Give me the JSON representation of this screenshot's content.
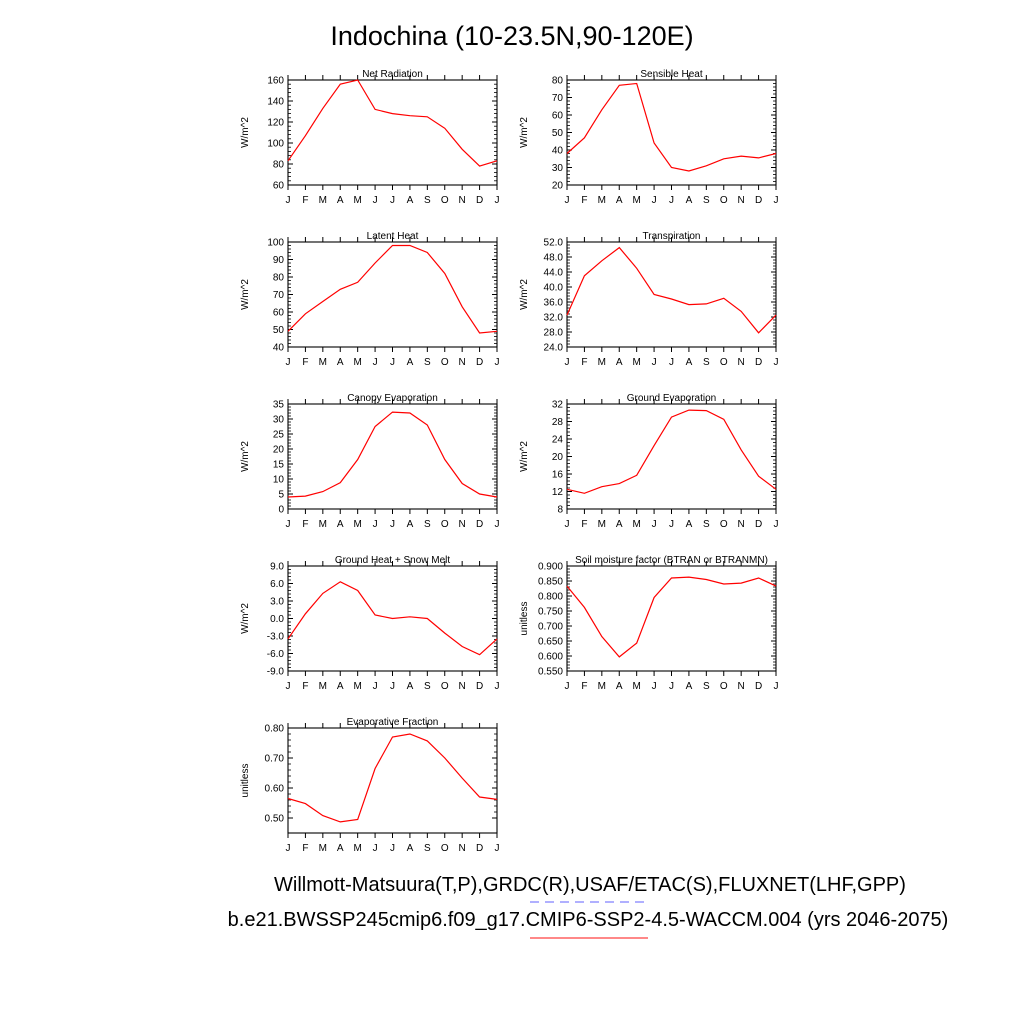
{
  "figure": {
    "title": "Indochina (10-23.5N,90-120E)",
    "footer_line1": "Willmott-Matsuura(T,P),GRDC(R),USAF/ETAC(S),FLUXNET(LHF,GPP)",
    "footer_line2": "b.e21.BWSSP245cmip6.f09_g17.CMIP6-SSP2-4.5-WACCM.004 (yrs 2046-2075)",
    "line_color": "#ff0000",
    "legend_dash_color": "#8080ff",
    "legend_solid_color": "#ff6060"
  },
  "chart_data": [
    {
      "type": "line",
      "title": "Net Radiation",
      "xlabel": "",
      "ylabel": "W/m^2",
      "categories": [
        "J",
        "F",
        "M",
        "A",
        "M",
        "J",
        "J",
        "A",
        "S",
        "O",
        "N",
        "D",
        "J"
      ],
      "ylim": [
        60,
        160
      ],
      "yticks": [
        "60",
        "80",
        "100",
        "120",
        "140",
        "160"
      ],
      "values": [
        83,
        107,
        133,
        156,
        160,
        132,
        128,
        126,
        125,
        114,
        94,
        78,
        83
      ]
    },
    {
      "type": "line",
      "title": "Sensible Heat",
      "xlabel": "",
      "ylabel": "W/m^2",
      "categories": [
        "J",
        "F",
        "M",
        "A",
        "M",
        "J",
        "J",
        "A",
        "S",
        "O",
        "N",
        "D",
        "J"
      ],
      "ylim": [
        20,
        80
      ],
      "yticks": [
        "20",
        "30",
        "40",
        "50",
        "60",
        "70",
        "80"
      ],
      "values": [
        38,
        47,
        63,
        77,
        78,
        44,
        30,
        28,
        31,
        35,
        36.5,
        35.5,
        38
      ]
    },
    {
      "type": "line",
      "title": "Latent Heat",
      "xlabel": "",
      "ylabel": "W/m^2",
      "categories": [
        "J",
        "F",
        "M",
        "A",
        "M",
        "J",
        "J",
        "A",
        "S",
        "O",
        "N",
        "D",
        "J"
      ],
      "ylim": [
        40,
        100
      ],
      "yticks": [
        "40",
        "50",
        "60",
        "70",
        "80",
        "90",
        "100"
      ],
      "values": [
        49,
        59,
        66,
        73,
        77,
        88,
        98,
        98,
        94,
        82,
        63,
        48,
        49
      ]
    },
    {
      "type": "line",
      "title": "Transpiration",
      "xlabel": "",
      "ylabel": "W/m^2",
      "categories": [
        "J",
        "F",
        "M",
        "A",
        "M",
        "J",
        "J",
        "A",
        "S",
        "O",
        "N",
        "D",
        "J"
      ],
      "ylim": [
        24,
        52
      ],
      "yticks": [
        "24.0",
        "28.0",
        "32.0",
        "36.0",
        "40.0",
        "44.0",
        "48.0",
        "52.0"
      ],
      "values": [
        32.5,
        43,
        47,
        50.5,
        45,
        38,
        36.8,
        35.3,
        35.5,
        37,
        33.5,
        27.8,
        32.5
      ]
    },
    {
      "type": "line",
      "title": "Canopy Evaporation",
      "xlabel": "",
      "ylabel": "W/m^2",
      "categories": [
        "J",
        "F",
        "M",
        "A",
        "M",
        "J",
        "J",
        "A",
        "S",
        "O",
        "N",
        "D",
        "J"
      ],
      "ylim": [
        0,
        35
      ],
      "yticks": [
        "0",
        "5",
        "10",
        "15",
        "20",
        "25",
        "30",
        "35"
      ],
      "values": [
        4,
        4.3,
        5.8,
        8.8,
        16.5,
        27.5,
        32.3,
        32,
        28,
        16.5,
        8.5,
        5,
        4
      ]
    },
    {
      "type": "line",
      "title": "Ground Evaporation",
      "xlabel": "",
      "ylabel": "W/m^2",
      "categories": [
        "J",
        "F",
        "M",
        "A",
        "M",
        "J",
        "J",
        "A",
        "S",
        "O",
        "N",
        "D",
        "J"
      ],
      "ylim": [
        8,
        32
      ],
      "yticks": [
        "8",
        "12",
        "16",
        "20",
        "24",
        "28",
        "32"
      ],
      "values": [
        12.5,
        11.6,
        13.1,
        13.8,
        15.7,
        22.5,
        29,
        30.6,
        30.5,
        28.5,
        21.5,
        15.5,
        12.5
      ]
    },
    {
      "type": "line",
      "title": "Ground Heat + Snow Melt",
      "xlabel": "",
      "ylabel": "W/m^2",
      "categories": [
        "J",
        "F",
        "M",
        "A",
        "M",
        "J",
        "J",
        "A",
        "S",
        "O",
        "N",
        "D",
        "J"
      ],
      "ylim": [
        -9,
        9
      ],
      "yticks": [
        "-9.0",
        "-6.0",
        "-3.0",
        "0.0",
        "3.0",
        "6.0",
        "9.0"
      ],
      "values": [
        -3.5,
        0.8,
        4.3,
        6.3,
        4.8,
        0.6,
        0.0,
        0.3,
        0.0,
        -2.5,
        -4.8,
        -6.2,
        -3.5
      ]
    },
    {
      "type": "line",
      "title": "Soil moisture factor (BTRAN or BTRANMN)",
      "xlabel": "",
      "ylabel": "unitless",
      "categories": [
        "J",
        "F",
        "M",
        "A",
        "M",
        "J",
        "J",
        "A",
        "S",
        "O",
        "N",
        "D",
        "J"
      ],
      "ylim": [
        0.55,
        0.9
      ],
      "yticks": [
        "0.550",
        "0.600",
        "0.650",
        "0.700",
        "0.750",
        "0.800",
        "0.850",
        "0.900"
      ],
      "values": [
        0.833,
        0.762,
        0.665,
        0.597,
        0.643,
        0.795,
        0.86,
        0.863,
        0.855,
        0.84,
        0.843,
        0.86,
        0.833
      ]
    },
    {
      "type": "line",
      "title": "Evaporative Fraction",
      "xlabel": "",
      "ylabel": "unitless",
      "categories": [
        "J",
        "F",
        "M",
        "A",
        "M",
        "J",
        "J",
        "A",
        "S",
        "O",
        "N",
        "D",
        "J"
      ],
      "ylim": [
        0.45,
        0.8
      ],
      "yticks": [
        "0.50",
        "0.60",
        "0.70",
        "0.80"
      ],
      "ytick_values": [
        0.5,
        0.6,
        0.7,
        0.8
      ],
      "values": [
        0.565,
        0.548,
        0.508,
        0.487,
        0.495,
        0.665,
        0.77,
        0.78,
        0.757,
        0.7,
        0.633,
        0.57,
        0.562
      ]
    }
  ]
}
